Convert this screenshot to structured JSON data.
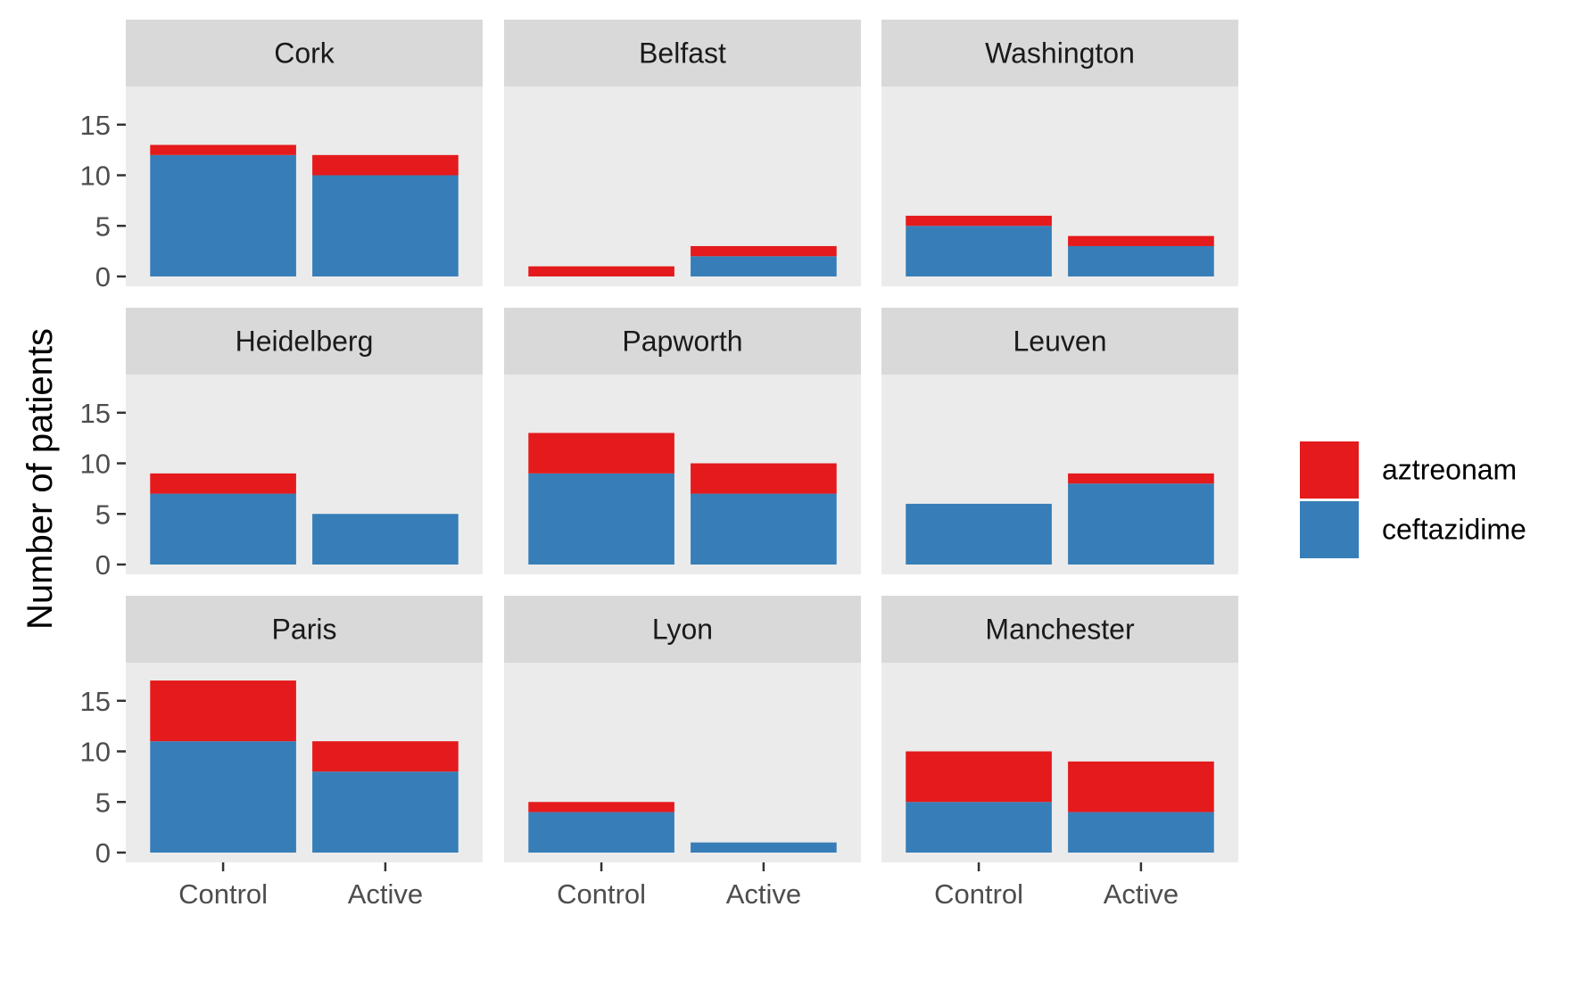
{
  "chart_data": {
    "type": "bar",
    "stacked": true,
    "faceted": true,
    "facet_layout": "3x3",
    "title": "",
    "xlabel": "",
    "ylabel": "Number of patients",
    "ylim": [
      0,
      17.8
    ],
    "yticks": [
      "0",
      "5",
      "10",
      "15"
    ],
    "categories": [
      "Control",
      "Active"
    ],
    "legend_position": "right",
    "stack_order": [
      "ceftazidime",
      "aztreonam"
    ],
    "legend": [
      "aztreonam",
      "ceftazidime"
    ],
    "colors": {
      "aztreonam": "#E41A1C",
      "ceftazidime": "#377EB8"
    },
    "panels": [
      {
        "name": "Cork",
        "series": [
          {
            "name": "ceftazidime",
            "values": [
              12,
              10
            ]
          },
          {
            "name": "aztreonam",
            "values": [
              1,
              2
            ]
          }
        ]
      },
      {
        "name": "Belfast",
        "series": [
          {
            "name": "ceftazidime",
            "values": [
              0,
              2
            ]
          },
          {
            "name": "aztreonam",
            "values": [
              1,
              1
            ]
          }
        ]
      },
      {
        "name": "Washington",
        "series": [
          {
            "name": "ceftazidime",
            "values": [
              5,
              3
            ]
          },
          {
            "name": "aztreonam",
            "values": [
              1,
              1
            ]
          }
        ]
      },
      {
        "name": "Heidelberg",
        "series": [
          {
            "name": "ceftazidime",
            "values": [
              7,
              5
            ]
          },
          {
            "name": "aztreonam",
            "values": [
              2,
              0
            ]
          }
        ]
      },
      {
        "name": "Papworth",
        "series": [
          {
            "name": "ceftazidime",
            "values": [
              9,
              7
            ]
          },
          {
            "name": "aztreonam",
            "values": [
              4,
              3
            ]
          }
        ]
      },
      {
        "name": "Leuven",
        "series": [
          {
            "name": "ceftazidime",
            "values": [
              6,
              8
            ]
          },
          {
            "name": "aztreonam",
            "values": [
              0,
              1
            ]
          }
        ]
      },
      {
        "name": "Paris",
        "series": [
          {
            "name": "ceftazidime",
            "values": [
              11,
              8
            ]
          },
          {
            "name": "aztreonam",
            "values": [
              6,
              3
            ]
          }
        ]
      },
      {
        "name": "Lyon",
        "series": [
          {
            "name": "ceftazidime",
            "values": [
              4,
              1
            ]
          },
          {
            "name": "aztreonam",
            "values": [
              1,
              0
            ]
          }
        ]
      },
      {
        "name": "Manchester",
        "series": [
          {
            "name": "ceftazidime",
            "values": [
              5,
              4
            ]
          },
          {
            "name": "aztreonam",
            "values": [
              5,
              5
            ]
          }
        ]
      }
    ]
  }
}
